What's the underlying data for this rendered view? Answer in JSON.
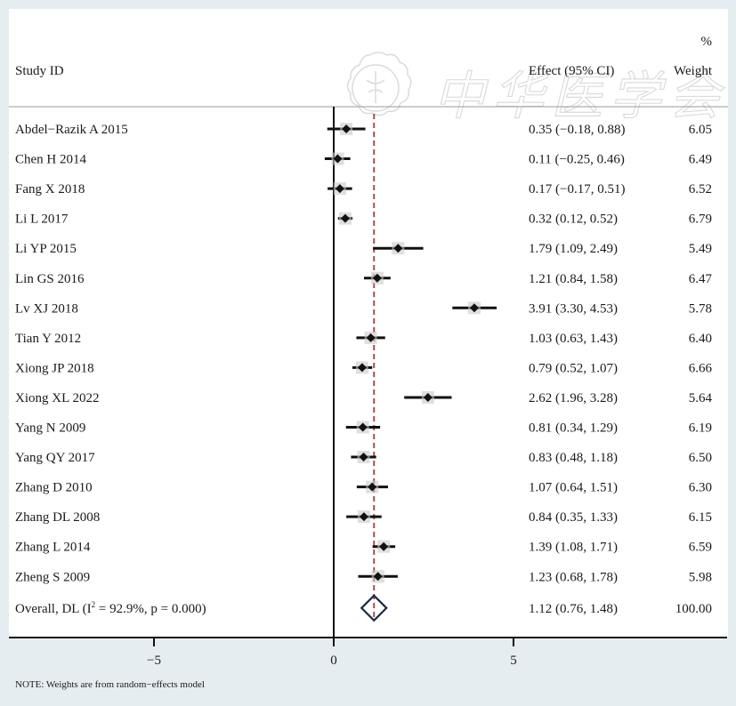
{
  "watermark": {
    "text": "中华医学会",
    "seal": "seal-emblem"
  },
  "colors": {
    "panel": "#ffffff",
    "background": "#e6edf1",
    "marker": "#111111",
    "ref_line": "#b04a4a",
    "diamond": "#1d2a4a",
    "axis": "#111111"
  },
  "chart_data": {
    "type": "forest",
    "title": "",
    "headers": {
      "study": "Study ID",
      "effect": "Effect (95% CI)",
      "weight_top": "%",
      "weight": "Weight"
    },
    "xlim": [
      -9,
      11
    ],
    "xticks": [
      -5,
      0,
      5
    ],
    "xtick_labels": [
      "−5",
      "0",
      "5"
    ],
    "null_line": 0,
    "studies": [
      {
        "id": "Abdel−Razik A 2015",
        "effect": 0.35,
        "lo": -0.18,
        "hi": 0.88,
        "ci_text": "0.35 (−0.18, 0.88)",
        "weight": "6.05"
      },
      {
        "id": "Chen H 2014",
        "effect": 0.11,
        "lo": -0.25,
        "hi": 0.46,
        "ci_text": "0.11 (−0.25, 0.46)",
        "weight": "6.49"
      },
      {
        "id": "Fang X 2018",
        "effect": 0.17,
        "lo": -0.17,
        "hi": 0.51,
        "ci_text": "0.17 (−0.17, 0.51)",
        "weight": "6.52"
      },
      {
        "id": "Li L 2017",
        "effect": 0.32,
        "lo": 0.12,
        "hi": 0.52,
        "ci_text": "0.32 (0.12, 0.52)",
        "weight": "6.79"
      },
      {
        "id": "Li YP 2015",
        "effect": 1.79,
        "lo": 1.09,
        "hi": 2.49,
        "ci_text": "1.79 (1.09, 2.49)",
        "weight": "5.49"
      },
      {
        "id": "Lin GS 2016",
        "effect": 1.21,
        "lo": 0.84,
        "hi": 1.58,
        "ci_text": "1.21 (0.84, 1.58)",
        "weight": "6.47"
      },
      {
        "id": "Lv XJ 2018",
        "effect": 3.91,
        "lo": 3.3,
        "hi": 4.53,
        "ci_text": "3.91 (3.30, 4.53)",
        "weight": "5.78"
      },
      {
        "id": "Tian Y 2012",
        "effect": 1.03,
        "lo": 0.63,
        "hi": 1.43,
        "ci_text": "1.03 (0.63, 1.43)",
        "weight": "6.40"
      },
      {
        "id": "Xiong JP 2018",
        "effect": 0.79,
        "lo": 0.52,
        "hi": 1.07,
        "ci_text": "0.79 (0.52, 1.07)",
        "weight": "6.66"
      },
      {
        "id": "Xiong XL 2022",
        "effect": 2.62,
        "lo": 1.96,
        "hi": 3.28,
        "ci_text": "2.62 (1.96, 3.28)",
        "weight": "5.64"
      },
      {
        "id": "Yang N 2009",
        "effect": 0.81,
        "lo": 0.34,
        "hi": 1.29,
        "ci_text": "0.81 (0.34, 1.29)",
        "weight": "6.19"
      },
      {
        "id": "Yang QY 2017",
        "effect": 0.83,
        "lo": 0.48,
        "hi": 1.18,
        "ci_text": "0.83 (0.48, 1.18)",
        "weight": "6.50"
      },
      {
        "id": "Zhang D 2010",
        "effect": 1.07,
        "lo": 0.64,
        "hi": 1.51,
        "ci_text": "1.07 (0.64, 1.51)",
        "weight": "6.30"
      },
      {
        "id": "Zhang DL 2008",
        "effect": 0.84,
        "lo": 0.35,
        "hi": 1.33,
        "ci_text": "0.84 (0.35, 1.33)",
        "weight": "6.15"
      },
      {
        "id": "Zhang L 2014",
        "effect": 1.39,
        "lo": 1.08,
        "hi": 1.71,
        "ci_text": "1.39 (1.08, 1.71)",
        "weight": "6.59"
      },
      {
        "id": "Zheng S 2009",
        "effect": 1.23,
        "lo": 0.68,
        "hi": 1.78,
        "ci_text": "1.23 (0.68, 1.78)",
        "weight": "5.98"
      }
    ],
    "overall": {
      "label_pre": "Overall, DL (I",
      "label_sup": "2",
      "label_post": " = 92.9%, p = 0.000)",
      "effect": 1.12,
      "lo": 0.76,
      "hi": 1.48,
      "ci_text": "1.12 (0.76, 1.48)",
      "weight": "100.00"
    },
    "note": "NOTE: Weights are from random−effects model"
  }
}
